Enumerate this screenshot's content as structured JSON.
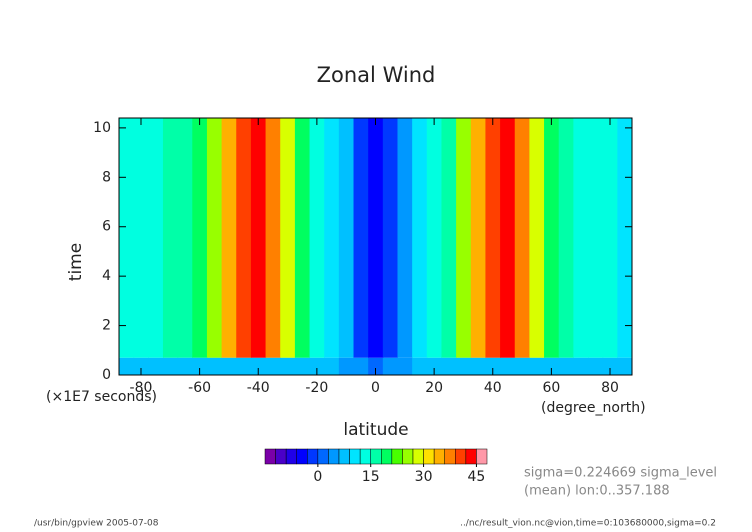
{
  "chart_data": {
    "type": "heatmap",
    "title": "Zonal Wind",
    "xlabel": "latitude",
    "ylabel": "time",
    "xunits": "(degree_north)",
    "yunits": "(×1E7 seconds)",
    "bins": [
      -87.5,
      -82.5,
      -77.5,
      -72.5,
      -67.5,
      -62.5,
      -57.5,
      -52.5,
      -47.5,
      -42.5,
      -37.5,
      -32.5,
      -27.5,
      -22.5,
      -17.5,
      -12.5,
      -7.5,
      -2.5,
      2.5,
      7.5,
      12.5,
      17.5,
      22.5,
      27.5,
      32.5,
      37.5,
      42.5,
      47.5,
      52.5,
      57.5,
      62.5,
      67.5,
      72.5,
      77.5,
      82.5,
      87.5
    ],
    "time_edges": [
      0,
      0.7,
      10.4
    ],
    "values": [
      [
        6,
        6,
        6,
        7,
        7,
        7,
        8,
        8,
        8,
        8,
        8,
        8,
        7,
        7,
        6,
        5,
        3,
        1,
        3,
        5,
        6,
        7,
        7,
        8,
        8,
        8,
        8,
        8,
        8,
        7,
        7,
        7,
        6,
        6,
        6
      ],
      [
        12,
        12,
        14,
        15,
        17,
        20,
        26,
        33,
        40,
        42,
        38,
        28,
        18,
        13,
        10,
        6,
        -3,
        -6,
        -3,
        5,
        10,
        12,
        16,
        24,
        33,
        40,
        42,
        36,
        28,
        20,
        16,
        14,
        13,
        12,
        11
      ]
    ],
    "xlim": [
      -87.5,
      87.5
    ],
    "xticks": [
      -80,
      -60,
      -40,
      -20,
      0,
      20,
      40,
      60,
      80
    ],
    "ylim": [
      0,
      10.4
    ],
    "yticks": [
      0,
      2,
      4,
      6,
      8,
      10
    ],
    "colorbar": {
      "levels": [
        -15,
        -12,
        -9,
        -6,
        -3,
        0,
        3,
        6,
        9,
        12,
        15,
        18,
        21,
        24,
        27,
        30,
        33,
        36,
        39,
        42,
        45,
        48
      ],
      "colors": [
        "#7a00a8",
        "#4a00c8",
        "#2000e8",
        "#0000ff",
        "#0038ff",
        "#0068ff",
        "#0098ff",
        "#00c0ff",
        "#00e4ff",
        "#00ffe0",
        "#00ffa8",
        "#00ff60",
        "#48ff00",
        "#98ff00",
        "#d8ff00",
        "#ffe000",
        "#ffb000",
        "#ff8000",
        "#ff4000",
        "#ff0000",
        "#ff98a8"
      ],
      "ticks": [
        0,
        15,
        30,
        45
      ]
    },
    "annotations": [
      "sigma=0.224669 sigma_level",
      "(mean) lon:0..357.188"
    ],
    "footer": [
      "/usr/bin/gpview  2005-07-08",
      "../nc/result_vion.nc@vion,time=0:103680000,sigma=0.2"
    ]
  }
}
